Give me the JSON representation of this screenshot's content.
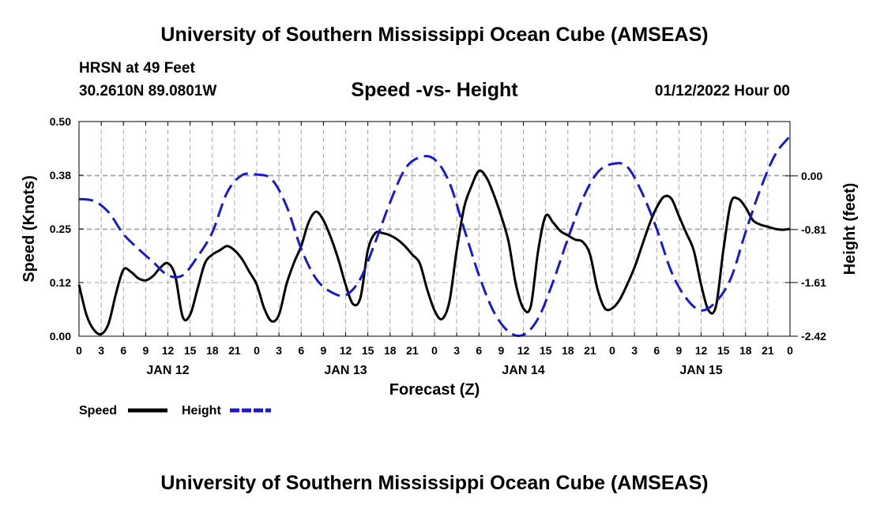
{
  "title": "University of Southern Mississippi Ocean Cube (AMSEAS)",
  "title_bottom": "University of Southern Mississippi Ocean Cube (AMSEAS)",
  "station": "HRSN at 49 Feet",
  "coords": "30.2610N  89.0801W",
  "subtitle": "Speed -vs- Height",
  "datetime": "01/12/2022 Hour 00",
  "chart_data": {
    "type": "line",
    "title": "Speed -vs- Height",
    "xlabel": "Forecast (Z)",
    "ylabel": "Speed (Knots)",
    "ylabel_right": "Height (feet)",
    "xlim": [
      0,
      96
    ],
    "ylim": [
      0,
      0.5
    ],
    "ylim_right": [
      -2.42,
      0.82
    ],
    "x_ticks": [
      0,
      3,
      6,
      9,
      12,
      15,
      18,
      21,
      24,
      27,
      30,
      33,
      36,
      39,
      42,
      45,
      48,
      51,
      54,
      57,
      60,
      63,
      66,
      69,
      72,
      75,
      78,
      81,
      84,
      87,
      90,
      93,
      96
    ],
    "x_tick_labels": [
      "0",
      "3",
      "6",
      "9",
      "12",
      "15",
      "18",
      "21",
      "0",
      "3",
      "6",
      "9",
      "12",
      "15",
      "18",
      "21",
      "0",
      "3",
      "6",
      "9",
      "12",
      "15",
      "18",
      "21",
      "0",
      "3",
      "6",
      "9",
      "12",
      "15",
      "18",
      "21",
      "0"
    ],
    "day_labels": [
      {
        "x": 12,
        "label": "JAN 12"
      },
      {
        "x": 36,
        "label": "JAN 13"
      },
      {
        "x": 60,
        "label": "JAN 14"
      },
      {
        "x": 84,
        "label": "JAN 15"
      }
    ],
    "y_ticks": [
      0.0,
      0.125,
      0.25,
      0.375,
      0.5
    ],
    "y_tick_labels": [
      "0.00",
      "0.12",
      "0.25",
      "0.38",
      "0.50"
    ],
    "y_ticks_right": [
      -2.42,
      -1.61,
      -0.81,
      0.0
    ],
    "y_tick_labels_right": [
      "-2.42",
      "-1.61",
      "-0.81",
      "0.00"
    ],
    "grid": true,
    "legend": "bottom-left",
    "series": [
      {
        "name": "Speed",
        "axis": "left",
        "color": "#000000",
        "dash": "solid",
        "x": [
          0,
          1,
          2,
          3,
          4,
          5,
          6,
          7,
          8,
          9,
          10,
          11,
          12,
          13,
          14,
          15,
          16,
          17,
          18,
          19,
          20,
          21,
          22,
          23,
          24,
          25,
          26,
          27,
          28,
          29,
          30,
          31,
          32,
          33,
          34,
          35,
          36,
          37,
          38,
          39,
          40,
          41,
          42,
          43,
          44,
          45,
          46,
          47,
          48,
          49,
          50,
          51,
          52,
          53,
          54,
          55,
          56,
          57,
          58,
          59,
          60,
          61,
          62,
          63,
          64,
          65,
          66,
          67,
          68,
          69,
          70,
          71,
          72,
          73,
          74,
          75,
          76,
          77,
          78,
          79,
          80,
          81,
          82,
          83,
          84,
          85,
          86,
          87,
          88,
          89,
          90,
          91,
          92,
          93,
          94,
          95,
          96
        ],
        "values": [
          0.12,
          0.05,
          0.015,
          0.005,
          0.03,
          0.1,
          0.155,
          0.15,
          0.135,
          0.13,
          0.14,
          0.16,
          0.17,
          0.14,
          0.045,
          0.05,
          0.11,
          0.17,
          0.19,
          0.2,
          0.21,
          0.2,
          0.18,
          0.15,
          0.12,
          0.065,
          0.035,
          0.05,
          0.12,
          0.17,
          0.21,
          0.265,
          0.29,
          0.27,
          0.23,
          0.18,
          0.12,
          0.075,
          0.09,
          0.2,
          0.24,
          0.24,
          0.235,
          0.225,
          0.21,
          0.19,
          0.17,
          0.11,
          0.06,
          0.04,
          0.08,
          0.2,
          0.3,
          0.35,
          0.385,
          0.37,
          0.33,
          0.28,
          0.22,
          0.12,
          0.065,
          0.07,
          0.2,
          0.28,
          0.265,
          0.245,
          0.235,
          0.225,
          0.22,
          0.19,
          0.11,
          0.065,
          0.065,
          0.085,
          0.12,
          0.16,
          0.21,
          0.26,
          0.3,
          0.325,
          0.32,
          0.28,
          0.24,
          0.2,
          0.12,
          0.06,
          0.07,
          0.2,
          0.31,
          0.32,
          0.3,
          0.27,
          0.26,
          0.255,
          0.25,
          0.248,
          0.25
        ]
      },
      {
        "name": "Height",
        "axis": "right",
        "color": "#1a1acc",
        "dash": "dashed",
        "x": [
          0,
          2,
          4,
          6,
          8,
          10,
          12,
          14,
          16,
          18,
          20,
          22,
          24,
          26,
          28,
          30,
          32,
          34,
          36,
          38,
          40,
          42,
          44,
          46,
          48,
          50,
          52,
          54,
          56,
          58,
          60,
          62,
          64,
          66,
          68,
          70,
          72,
          74,
          76,
          78,
          80,
          82,
          84,
          86,
          88,
          90,
          92,
          94,
          96
        ],
        "values": [
          -0.35,
          -0.38,
          -0.55,
          -0.88,
          -1.1,
          -1.3,
          -1.5,
          -1.5,
          -1.22,
          -0.85,
          -0.25,
          0.01,
          0.02,
          -0.05,
          -0.45,
          -1.1,
          -1.55,
          -1.75,
          -1.8,
          -1.55,
          -1.0,
          -0.4,
          0.1,
          0.28,
          0.25,
          -0.1,
          -0.8,
          -1.5,
          -2.05,
          -2.35,
          -2.4,
          -2.15,
          -1.6,
          -0.95,
          -0.35,
          0.05,
          0.18,
          0.14,
          -0.25,
          -0.8,
          -1.45,
          -1.85,
          -2.03,
          -1.9,
          -1.55,
          -0.85,
          -0.2,
          0.32,
          0.6
        ]
      }
    ]
  }
}
